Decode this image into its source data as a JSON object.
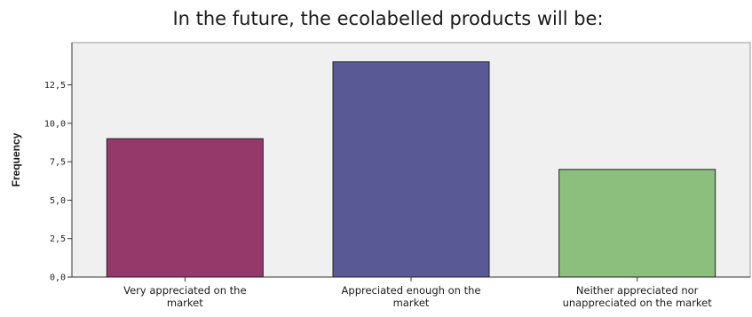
{
  "chart_data": {
    "type": "bar",
    "title": "In the future, the ecolabelled products will be:",
    "xlabel": "",
    "ylabel": "Frequency",
    "categories": [
      [
        "Very appreciated on the",
        "market"
      ],
      [
        "Appreciated enough on the",
        "market"
      ],
      [
        "Neither appreciated nor",
        "unappreciated on the market"
      ]
    ],
    "values": [
      9,
      14,
      7
    ],
    "colors": [
      "#95386a",
      "#585995",
      "#8cbf7d"
    ],
    "yticks": [
      {
        "value": 0,
        "label": "0,0"
      },
      {
        "value": 2.5,
        "label": "2,5"
      },
      {
        "value": 5,
        "label": "5,0"
      },
      {
        "value": 7.5,
        "label": "7,5"
      },
      {
        "value": 10,
        "label": "10,0"
      },
      {
        "value": 12.5,
        "label": "12,5"
      }
    ],
    "ylim": [
      0,
      15.25
    ],
    "grid": false,
    "plot_background": "#f0f0f0"
  }
}
